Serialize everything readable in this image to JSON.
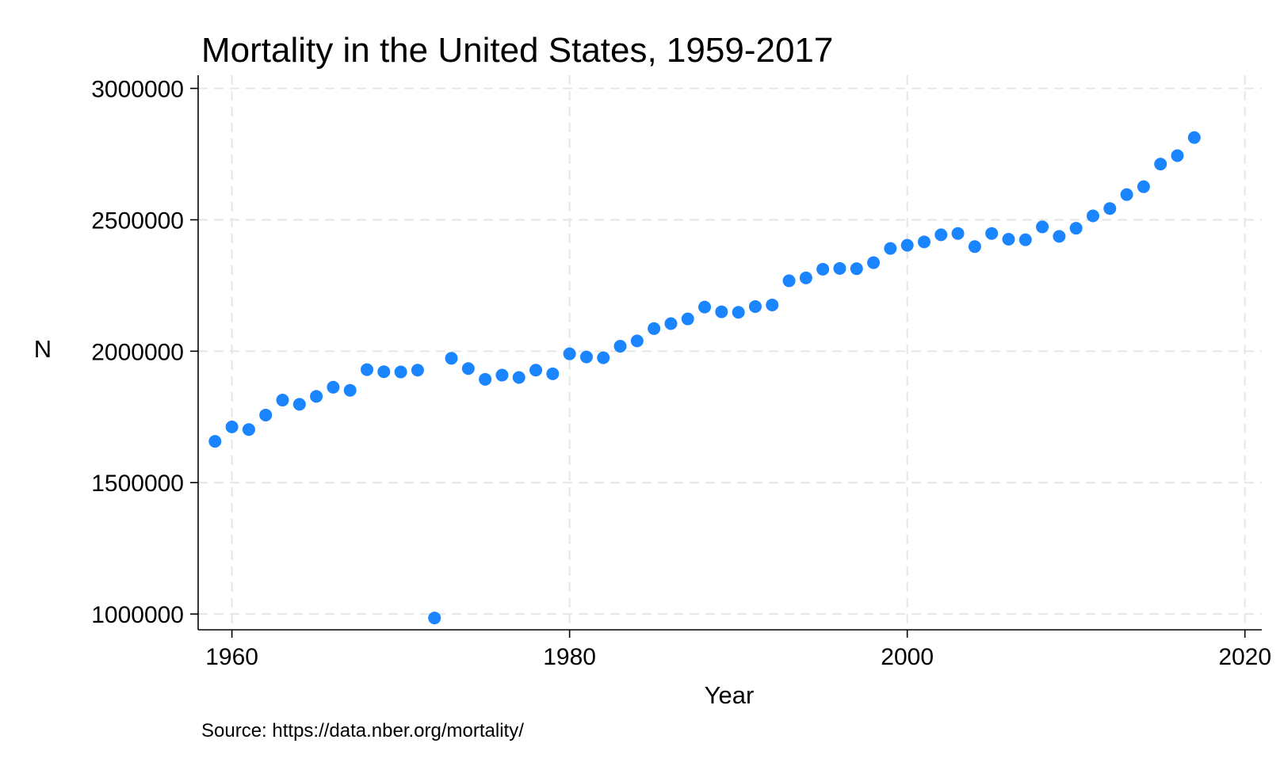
{
  "chart_data": {
    "type": "scatter",
    "title": "Mortality in the United States, 1959-2017",
    "xlabel": "Year",
    "ylabel": "N",
    "note": "Source: https://data.nber.org/mortality/",
    "xlim": [
      1958,
      2021
    ],
    "ylim": [
      940000,
      3050000
    ],
    "x_ticks": [
      1960,
      1980,
      2000,
      2020
    ],
    "y_ticks": [
      1000000,
      1500000,
      2000000,
      2500000,
      3000000
    ],
    "grid": true,
    "marker_color": "#1a85ff",
    "series": [
      {
        "x": [
          1959,
          1960,
          1961,
          1962,
          1963,
          1964,
          1965,
          1966,
          1967,
          1968,
          1969,
          1970,
          1971,
          1972,
          1973,
          1974,
          1975,
          1976,
          1977,
          1978,
          1979,
          1980,
          1981,
          1982,
          1983,
          1984,
          1985,
          1986,
          1987,
          1988,
          1989,
          1990,
          1991,
          1992,
          1993,
          1994,
          1995,
          1996,
          1997,
          1998,
          1999,
          2000,
          2001,
          2002,
          2003,
          2004,
          2005,
          2006,
          2007,
          2008,
          2009,
          2010,
          2011,
          2012,
          2013,
          2014,
          2015,
          2016,
          2017
        ],
        "y": [
          1657000,
          1712000,
          1702000,
          1757000,
          1814000,
          1798000,
          1828000,
          1863000,
          1851000,
          1930000,
          1922000,
          1921000,
          1928000,
          985000,
          1973000,
          1934000,
          1893000,
          1909000,
          1900000,
          1928000,
          1914000,
          1990000,
          1978000,
          1975000,
          2019000,
          2039000,
          2086000,
          2105000,
          2123000,
          2168000,
          2150000,
          2148000,
          2170000,
          2176000,
          2268000,
          2279000,
          2312000,
          2315000,
          2314000,
          2337000,
          2391000,
          2403000,
          2416000,
          2443000,
          2448000,
          2398000,
          2448000,
          2426000,
          2424000,
          2473000,
          2437000,
          2468000,
          2515000,
          2543000,
          2596000,
          2626000,
          2712000,
          2744000,
          2813000
        ]
      }
    ]
  }
}
